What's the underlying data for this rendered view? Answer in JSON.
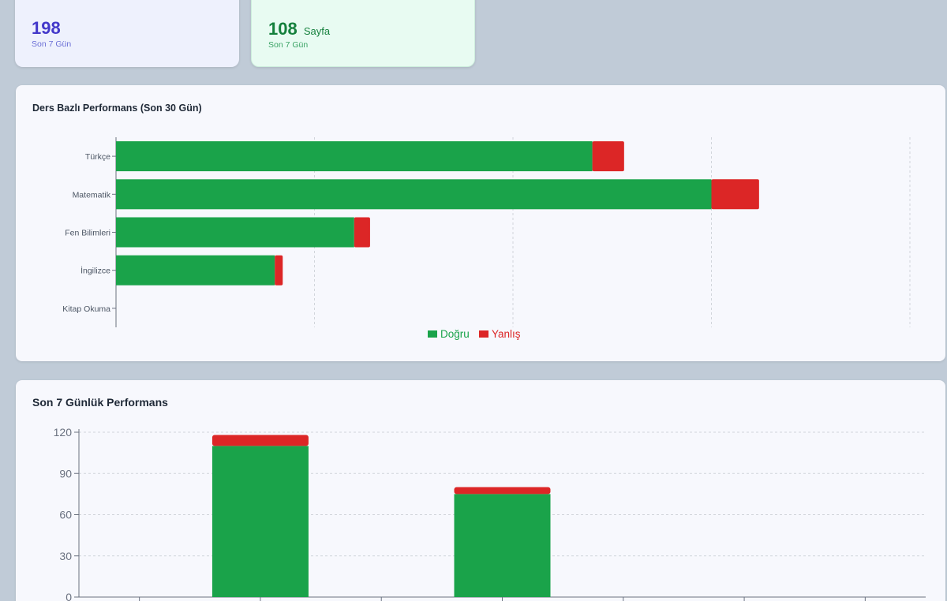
{
  "stats": [
    {
      "value": "198",
      "unit": "",
      "label": "Son 7 Gün"
    },
    {
      "value": "108",
      "unit": "Sayfa",
      "label": "Son 7 Gün"
    }
  ],
  "colors": {
    "correct": "#1aa34a",
    "wrong": "#dc2626"
  },
  "legend": {
    "correct": "Doğru",
    "wrong": "Yanlış"
  },
  "subject_chart": {
    "title": "Ders Bazlı Performans (Son 30 Gün)"
  },
  "daily_chart": {
    "title": "Son 7 Günlük Performans"
  },
  "chart_data": [
    {
      "type": "bar",
      "orientation": "horizontal",
      "stacked": true,
      "title": "Ders Bazlı Performans (Son 30 Gün)",
      "categories": [
        "Türkçe",
        "Matematik",
        "Fen Bilimleri",
        "İngilizce",
        "Kitap Okuma"
      ],
      "series": [
        {
          "name": "Doğru",
          "values": [
            240,
            300,
            120,
            80,
            0
          ]
        },
        {
          "name": "Yanlış",
          "values": [
            16,
            24,
            8,
            4,
            0
          ]
        }
      ],
      "xlim": [
        0,
        400
      ],
      "grid": true,
      "legend": "bottom"
    },
    {
      "type": "bar",
      "orientation": "vertical",
      "stacked": true,
      "title": "Son 7 Günlük Performans",
      "categories": [
        "",
        "",
        "",
        "",
        "",
        "",
        ""
      ],
      "series": [
        {
          "name": "Doğru",
          "values": [
            0,
            110,
            0,
            75,
            0,
            0,
            0
          ]
        },
        {
          "name": "Yanlış",
          "values": [
            0,
            8,
            0,
            5,
            0,
            0,
            0
          ]
        }
      ],
      "yticks": [
        0,
        30,
        60,
        90,
        120
      ],
      "ylim": [
        0,
        125
      ],
      "grid": true
    }
  ]
}
